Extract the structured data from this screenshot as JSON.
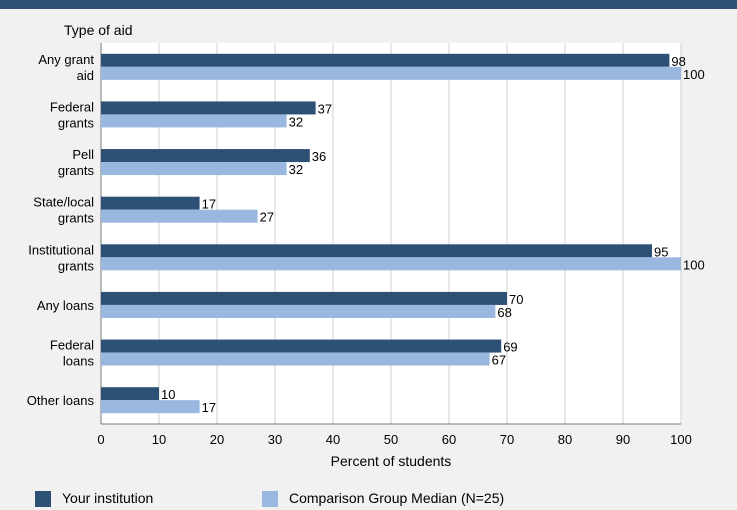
{
  "chart_data": {
    "type": "bar",
    "orientation": "horizontal",
    "y_axis_title": "Type of aid",
    "xlabel": "Percent of students",
    "xlim": [
      0,
      100
    ],
    "xticks": [
      "0",
      "10",
      "20",
      "30",
      "40",
      "50",
      "60",
      "70",
      "80",
      "90",
      "100"
    ],
    "grid": true,
    "categories": [
      [
        "Any grant",
        "aid"
      ],
      [
        "Federal",
        "grants"
      ],
      [
        "Pell",
        "grants"
      ],
      [
        "State/local",
        "grants"
      ],
      [
        "Institutional",
        "grants"
      ],
      [
        "Any loans"
      ],
      [
        "Federal",
        "loans"
      ],
      [
        "Other loans"
      ]
    ],
    "series": [
      {
        "name": "Your institution",
        "color": "#2d5075",
        "values": [
          98,
          37,
          36,
          17,
          95,
          70,
          69,
          10
        ]
      },
      {
        "name": "Comparison Group Median (N=25)",
        "color": "#9ab8df",
        "values": [
          100,
          32,
          32,
          27,
          100,
          68,
          67,
          17
        ]
      }
    ],
    "legend_position": "bottom"
  }
}
